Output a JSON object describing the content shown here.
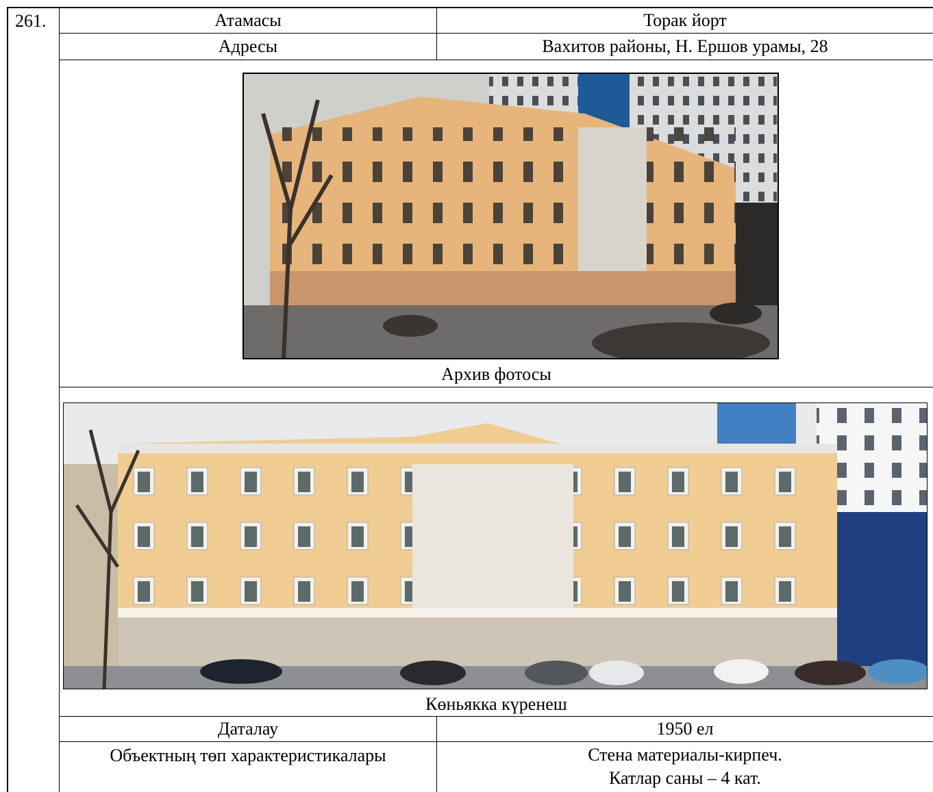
{
  "item_number": "261.",
  "table": {
    "rows": [
      [
        "Атамасы",
        "Торак йорт"
      ],
      [
        "Адресы",
        "Вахитов районы, Н. Ершов урамы, 28"
      ]
    ],
    "archive_photo_caption": "Архив фотосы",
    "current_photo_caption": "Көньякка күренеш",
    "bottom_rows": [
      [
        "Даталау",
        "1950 ел"
      ],
      [
        "Объектның төп характеристикалары",
        [
          "Стена материалы-кирпеч.",
          "Катлар саны – 4 кат."
        ]
      ]
    ]
  }
}
